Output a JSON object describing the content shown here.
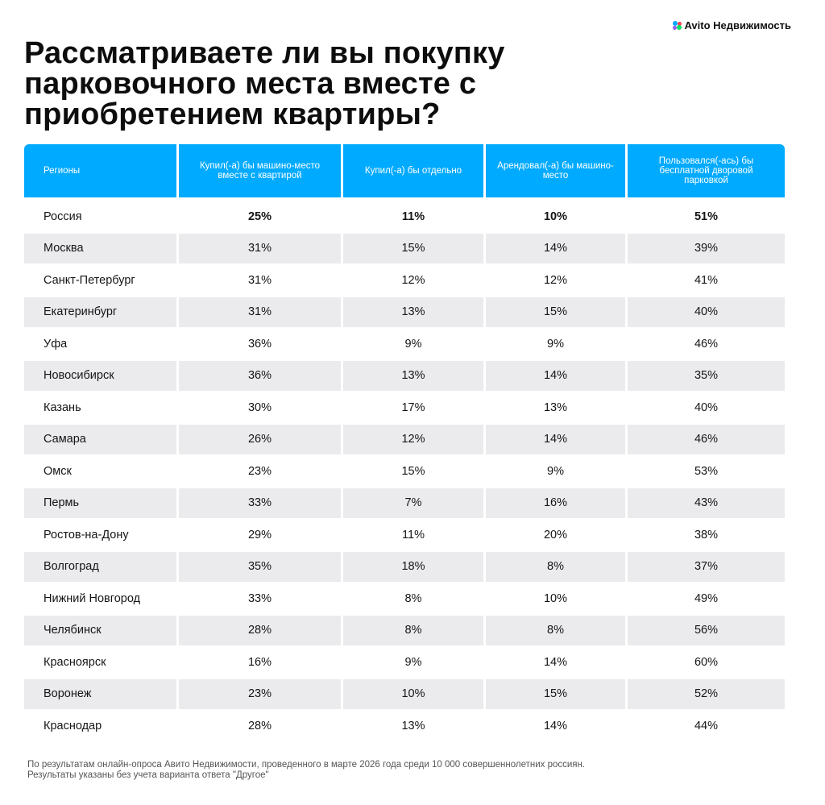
{
  "title": "Рассматриваете ли вы покупку парковочного места вместе с приобретением квартиры?",
  "logo": {
    "text": "Avito Недвижимость"
  },
  "chart_data": {
    "type": "table",
    "columns": [
      "Регионы",
      "Купил(-а) бы машино-место вместе с квартирой",
      "Купил(-а) бы отдельно",
      "Арендовал(-а) бы машино-место",
      "Пользовался(-ась) бы бесплатной дворовой парковкой"
    ],
    "rows": [
      {
        "region": "Россия",
        "values": [
          "25%",
          "11%",
          "10%",
          "51%"
        ]
      },
      {
        "region": "Москва",
        "values": [
          "31%",
          "15%",
          "14%",
          "39%"
        ]
      },
      {
        "region": "Санкт-Петербург",
        "values": [
          "31%",
          "12%",
          "12%",
          "41%"
        ]
      },
      {
        "region": "Екатеринбург",
        "values": [
          "31%",
          "13%",
          "15%",
          "40%"
        ]
      },
      {
        "region": "Уфа",
        "values": [
          "36%",
          "9%",
          "9%",
          "46%"
        ]
      },
      {
        "region": "Новосибирск",
        "values": [
          "36%",
          "13%",
          "14%",
          "35%"
        ]
      },
      {
        "region": "Казань",
        "values": [
          "30%",
          "17%",
          "13%",
          "40%"
        ]
      },
      {
        "region": "Самара",
        "values": [
          "26%",
          "12%",
          "14%",
          "46%"
        ]
      },
      {
        "region": "Омск",
        "values": [
          "23%",
          "15%",
          "9%",
          "53%"
        ]
      },
      {
        "region": "Пермь",
        "values": [
          "33%",
          "7%",
          "16%",
          "43%"
        ]
      },
      {
        "region": "Ростов-на-Дону",
        "values": [
          "29%",
          "11%",
          "20%",
          "38%"
        ]
      },
      {
        "region": "Волгоград",
        "values": [
          "35%",
          "18%",
          "8%",
          "37%"
        ]
      },
      {
        "region": "Нижний Новгород",
        "values": [
          "33%",
          "8%",
          "10%",
          "49%"
        ]
      },
      {
        "region": "Челябинск",
        "values": [
          "28%",
          "8%",
          "8%",
          "56%"
        ]
      },
      {
        "region": "Красноярск",
        "values": [
          "16%",
          "9%",
          "14%",
          "60%"
        ]
      },
      {
        "region": "Воронеж",
        "values": [
          "23%",
          "10%",
          "15%",
          "52%"
        ]
      },
      {
        "region": "Краснодар",
        "values": [
          "28%",
          "13%",
          "14%",
          "44%"
        ]
      }
    ]
  },
  "footnote": {
    "line1": "По результатам онлайн-опроса Авито Недвижимости, проведенного в марте 2026 года среди 10 000 совершеннолетних россиян.",
    "line2": "Результаты указаны без учета варианта ответа \"Другое\""
  },
  "colors": {
    "header_bg": "#00aaff",
    "shade_row": "#ebebed"
  }
}
